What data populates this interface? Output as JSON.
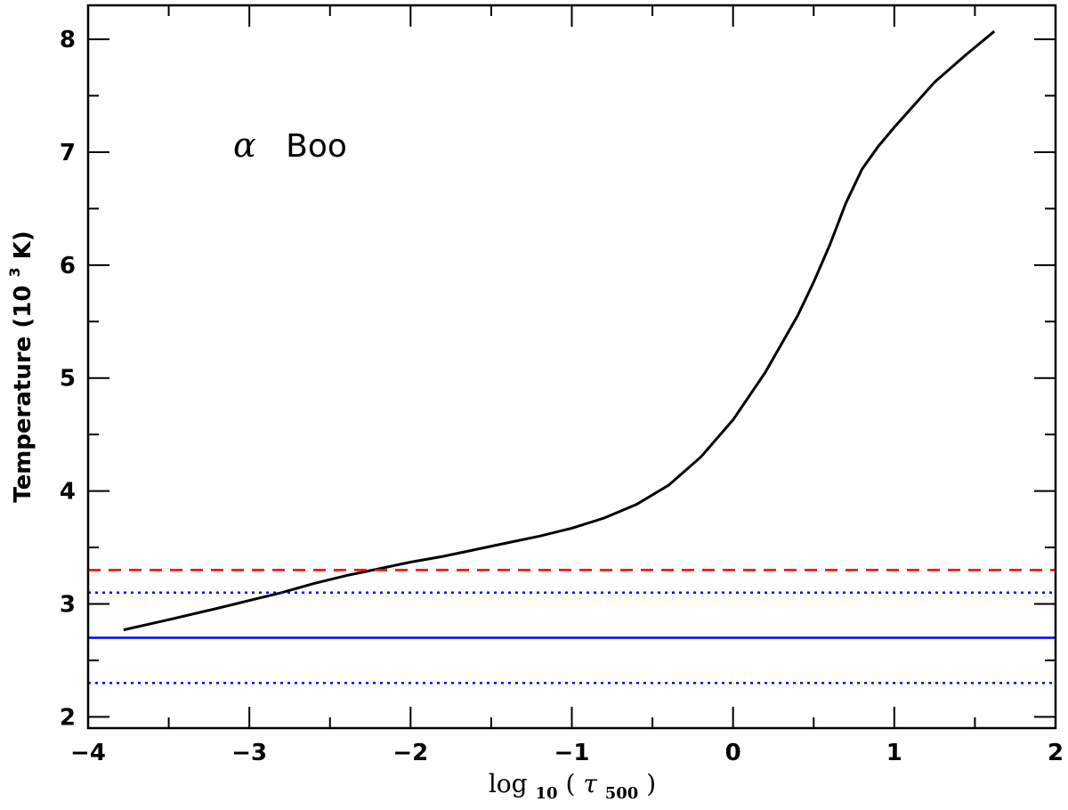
{
  "chart_data": {
    "type": "line",
    "xlabel": {
      "base": "log",
      "base_sub": "10",
      "open": "(",
      "tau": "τ",
      "tau_sub": "500",
      "close": ")"
    },
    "ylabel": {
      "main": "Temperature  (10",
      "sup": "3",
      "tail": " K)"
    },
    "annotation": {
      "greek": "α",
      "text": "Boo"
    },
    "xlim": [
      -4,
      2
    ],
    "ylim": [
      1.9,
      8.3
    ],
    "x_ticks": [
      -4,
      -3,
      -2,
      -1,
      0,
      1,
      2
    ],
    "x_tick_labels": [
      "−4",
      "−3",
      "−2",
      "−1",
      "0",
      "1",
      "2"
    ],
    "y_ticks": [
      2,
      3,
      4,
      5,
      6,
      7,
      8
    ],
    "y_tick_labels": [
      "2",
      "3",
      "4",
      "5",
      "6",
      "7",
      "8"
    ],
    "grid": false,
    "series": [
      {
        "style": "solid",
        "color": "#000000",
        "x": [
          -3.78,
          -3.5,
          -3.2,
          -3.0,
          -2.8,
          -2.6,
          -2.4,
          -2.2,
          -2.0,
          -1.8,
          -1.6,
          -1.4,
          -1.2,
          -1.0,
          -0.8,
          -0.6,
          -0.4,
          -0.2,
          0.0,
          0.2,
          0.4,
          0.5,
          0.6,
          0.7,
          0.8,
          0.9,
          1.0,
          1.1,
          1.25,
          1.45,
          1.62
        ],
        "y": [
          2.77,
          2.86,
          2.96,
          3.03,
          3.1,
          3.18,
          3.25,
          3.31,
          3.37,
          3.42,
          3.48,
          3.54,
          3.6,
          3.67,
          3.76,
          3.88,
          4.05,
          4.3,
          4.63,
          5.05,
          5.55,
          5.85,
          6.18,
          6.55,
          6.85,
          7.05,
          7.22,
          7.38,
          7.62,
          7.87,
          8.07
        ]
      },
      {
        "style": "dashed",
        "color": "#ff0000",
        "x": [
          -4,
          2
        ],
        "y": [
          3.3,
          3.3
        ]
      },
      {
        "style": "solid",
        "color": "#0000ff",
        "x": [
          -4,
          2
        ],
        "y": [
          2.7,
          2.7
        ]
      },
      {
        "style": "dotted",
        "color": "#0000ff",
        "x": [
          -4,
          2
        ],
        "y": [
          3.1,
          3.1
        ]
      },
      {
        "style": "dotted",
        "color": "#0000ff",
        "x": [
          -4,
          2
        ],
        "y": [
          2.3,
          2.3
        ]
      }
    ]
  }
}
